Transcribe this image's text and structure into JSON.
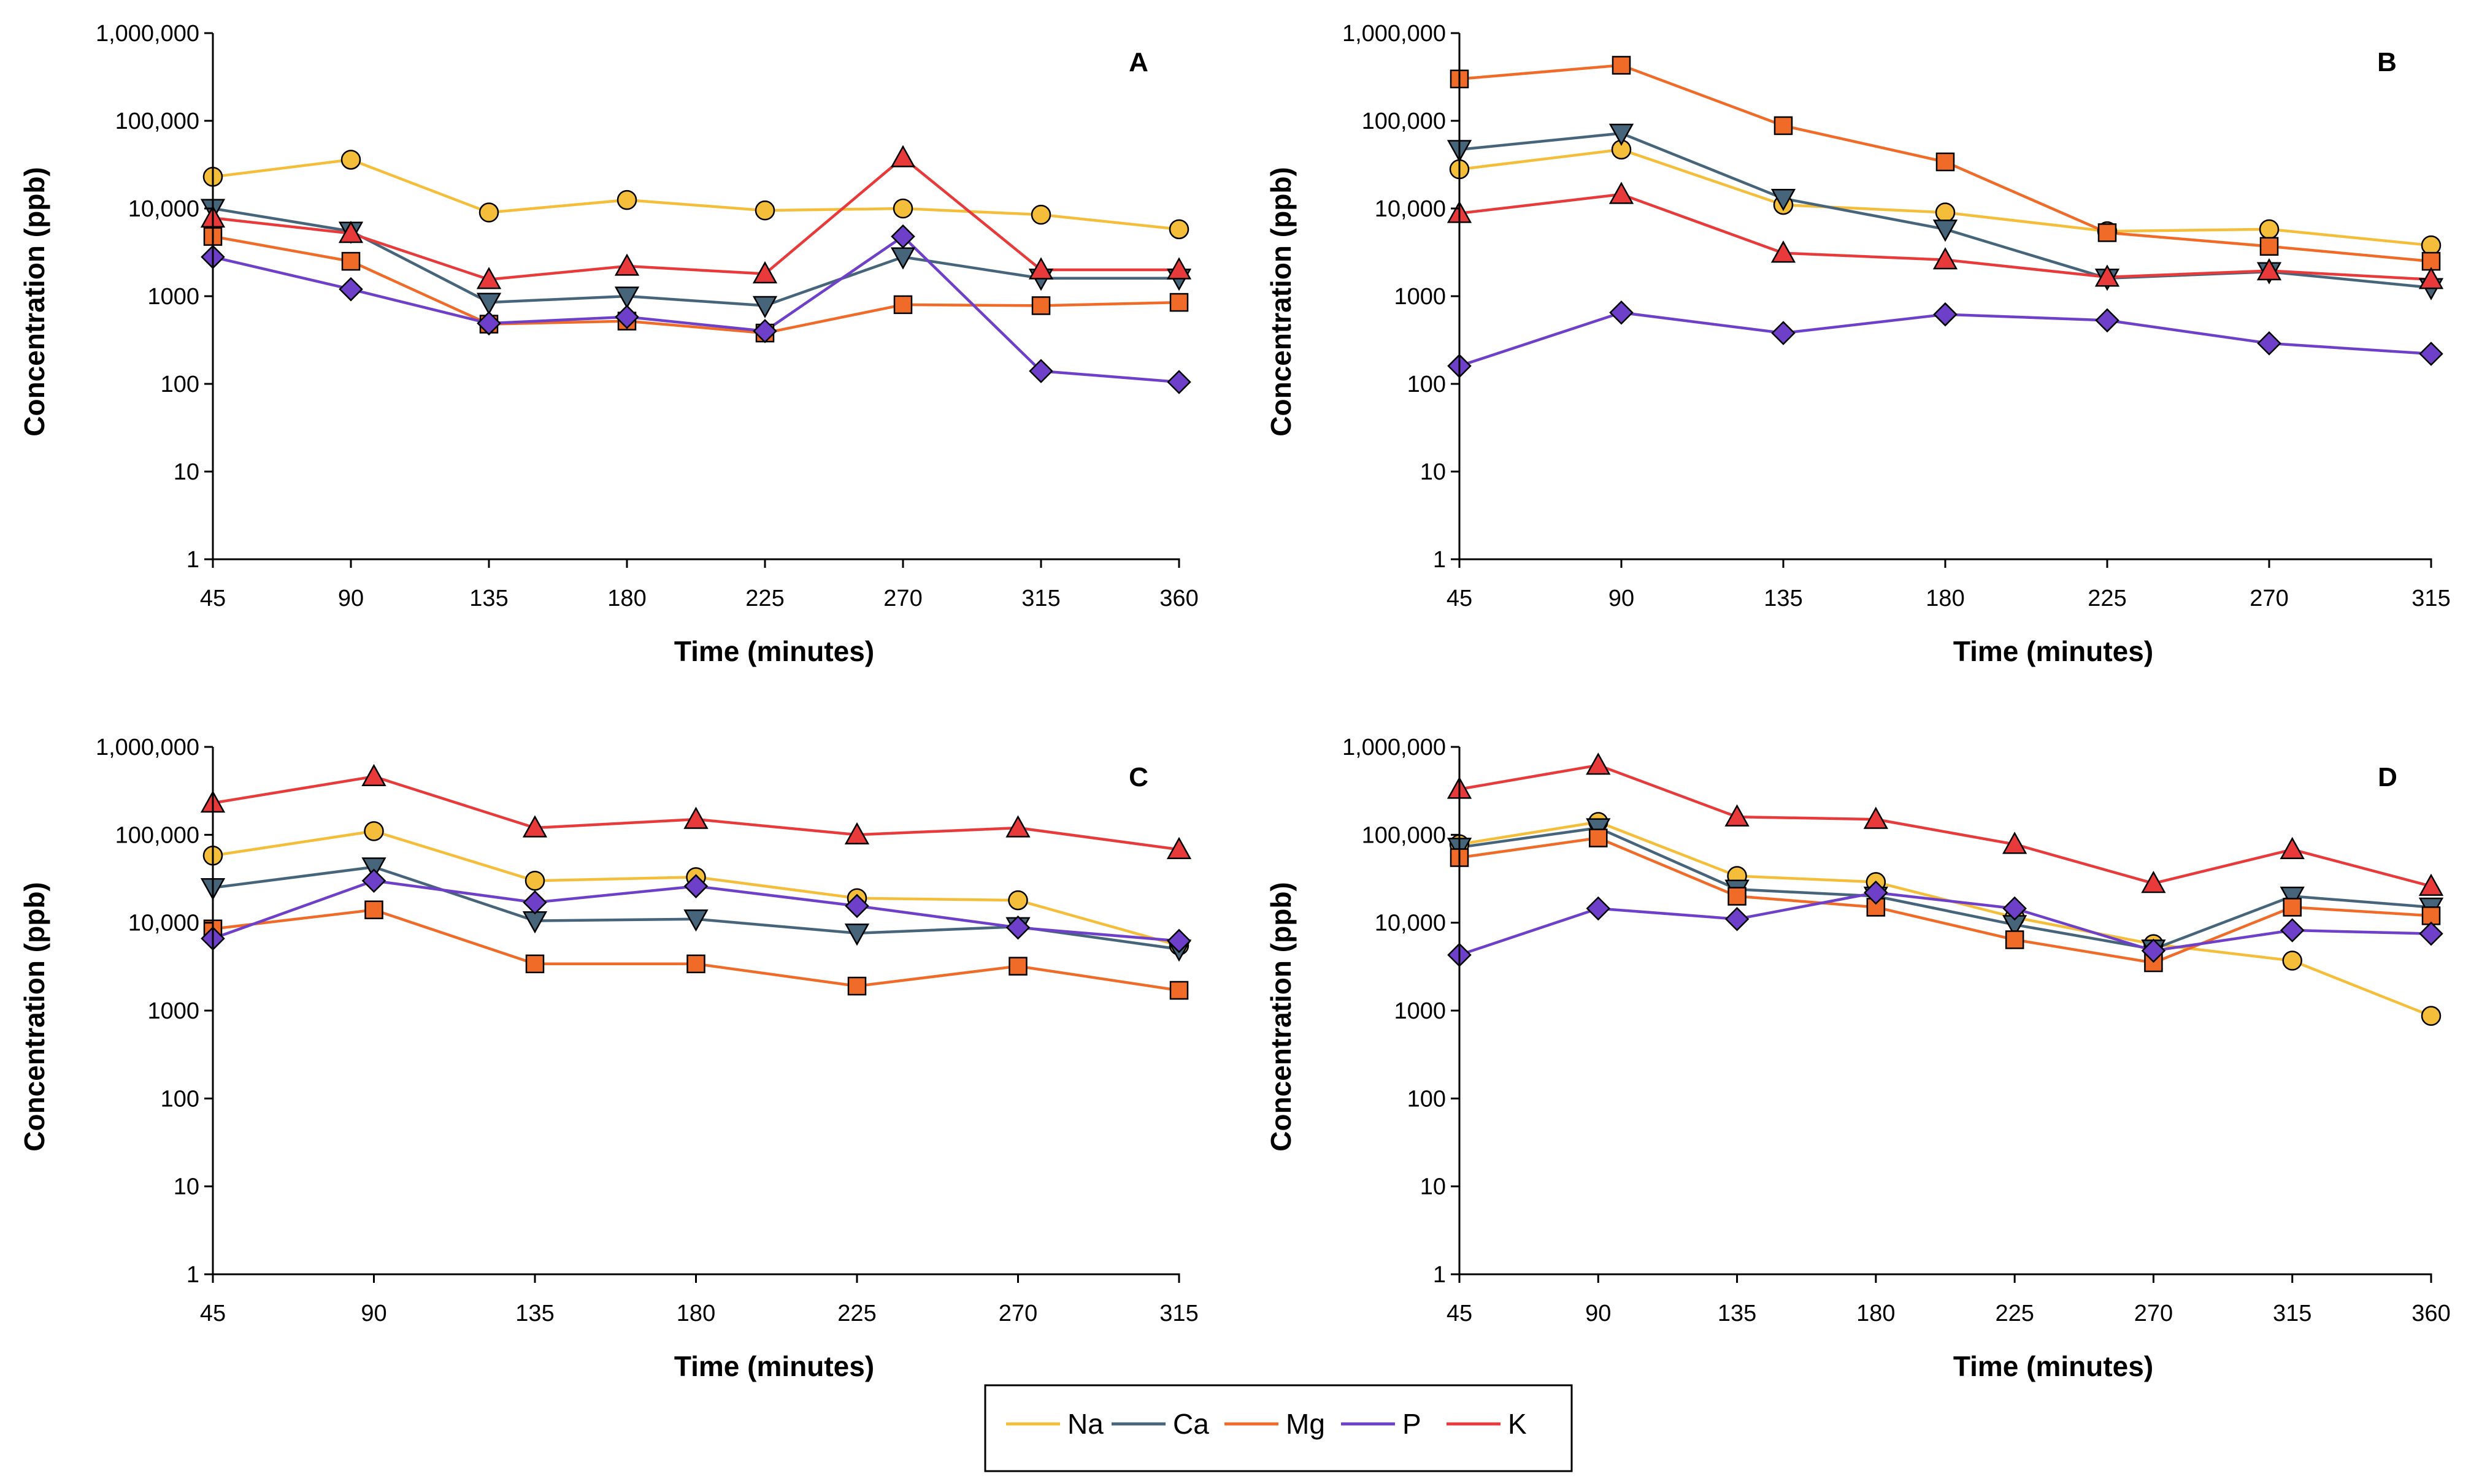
{
  "chart_data": [
    {
      "type": "line",
      "panel": "A",
      "title": "A",
      "xlabel": "Time (minutes)",
      "ylabel": "Concentration (ppb)",
      "yscale": "log",
      "ylim": [
        1,
        1000000
      ],
      "y_ticks": [
        1,
        10,
        100,
        1000,
        10000,
        100000,
        1000000
      ],
      "y_tick_labels": [
        "1",
        "10",
        "100",
        "1000",
        "10,000",
        "100,000",
        "1,000,000"
      ],
      "x": [
        45,
        90,
        135,
        180,
        225,
        270,
        315,
        360
      ],
      "x_tick_labels": [
        "45",
        "90",
        "135",
        "180",
        "225",
        "270",
        "315",
        "360"
      ],
      "series": [
        {
          "name": "Na",
          "values": [
            23000,
            36000,
            9000,
            12500,
            9500,
            10000,
            8500,
            5800
          ]
        },
        {
          "name": "Ca",
          "values": [
            10000,
            5500,
            850,
            1000,
            780,
            2800,
            1600,
            1600
          ]
        },
        {
          "name": "Mg",
          "values": [
            4800,
            2500,
            480,
            520,
            380,
            800,
            780,
            850
          ]
        },
        {
          "name": "P",
          "values": [
            2800,
            1200,
            490,
            580,
            400,
            4800,
            140,
            105
          ]
        },
        {
          "name": "K",
          "values": [
            7800,
            5200,
            1550,
            2200,
            1800,
            38000,
            2000,
            2000
          ]
        }
      ]
    },
    {
      "type": "line",
      "panel": "B",
      "title": "B",
      "xlabel": "Time (minutes)",
      "ylabel": "Concentration (ppb)",
      "yscale": "log",
      "ylim": [
        1,
        1000000
      ],
      "y_ticks": [
        1,
        10,
        100,
        1000,
        10000,
        100000,
        1000000
      ],
      "y_tick_labels": [
        "1",
        "10",
        "100",
        "1000",
        "10,000",
        "100,000",
        "1,000,000"
      ],
      "x": [
        45,
        90,
        135,
        180,
        225,
        270,
        315
      ],
      "x_tick_labels": [
        "45",
        "90",
        "135",
        "180",
        "225",
        "270",
        "315"
      ],
      "series": [
        {
          "name": "Na",
          "values": [
            28000,
            47000,
            11000,
            9000,
            5500,
            5800,
            3800
          ]
        },
        {
          "name": "Ca",
          "values": [
            47000,
            72000,
            13000,
            5800,
            1600,
            1900,
            1250
          ]
        },
        {
          "name": "Mg",
          "values": [
            300000,
            430000,
            88000,
            34000,
            5300,
            3700,
            2500
          ]
        },
        {
          "name": "P",
          "values": [
            160,
            650,
            380,
            620,
            530,
            290,
            220
          ]
        },
        {
          "name": "K",
          "values": [
            8800,
            14500,
            3100,
            2600,
            1650,
            1950,
            1550
          ]
        }
      ]
    },
    {
      "type": "line",
      "panel": "C",
      "title": "C",
      "xlabel": "Time (minutes)",
      "ylabel": "Concentration (ppb)",
      "yscale": "log",
      "ylim": [
        1,
        1000000
      ],
      "y_ticks": [
        1,
        10,
        100,
        1000,
        10000,
        100000,
        1000000
      ],
      "y_tick_labels": [
        "1",
        "10",
        "100",
        "1000",
        "10,000",
        "100,000",
        "1,000,000"
      ],
      "x": [
        45,
        90,
        135,
        180,
        225,
        270,
        315
      ],
      "x_tick_labels": [
        "45",
        "90",
        "135",
        "180",
        "225",
        "270",
        "315"
      ],
      "series": [
        {
          "name": "Na",
          "values": [
            58000,
            110000,
            30000,
            33000,
            19000,
            18000,
            5500
          ]
        },
        {
          "name": "Ca",
          "values": [
            25000,
            43000,
            10500,
            11000,
            7600,
            9000,
            5000
          ]
        },
        {
          "name": "Mg",
          "values": [
            8500,
            14000,
            3400,
            3400,
            1900,
            3200,
            1700
          ]
        },
        {
          "name": "P",
          "values": [
            6600,
            30000,
            17000,
            26000,
            15500,
            8800,
            6200
          ]
        },
        {
          "name": "K",
          "values": [
            230000,
            460000,
            120000,
            150000,
            100000,
            120000,
            68000
          ]
        }
      ]
    },
    {
      "type": "line",
      "panel": "D",
      "title": "D",
      "xlabel": "Time (minutes)",
      "ylabel": "Concentration (ppb)",
      "yscale": "log",
      "ylim": [
        1,
        1000000
      ],
      "y_ticks": [
        1,
        10,
        100,
        1000,
        10000,
        100000,
        1000000
      ],
      "y_tick_labels": [
        "1",
        "10",
        "100",
        "1000",
        "10,000",
        "100,000",
        "1,000,000"
      ],
      "x": [
        45,
        90,
        135,
        180,
        225,
        270,
        315,
        360
      ],
      "x_tick_labels": [
        "45",
        "90",
        "135",
        "180",
        "225",
        "270",
        "315",
        "360"
      ],
      "series": [
        {
          "name": "Na",
          "values": [
            78000,
            140000,
            34000,
            29000,
            11500,
            5700,
            3700,
            870
          ]
        },
        {
          "name": "Ca",
          "values": [
            72000,
            120000,
            24000,
            20000,
            9500,
            5000,
            20000,
            15000
          ]
        },
        {
          "name": "Mg",
          "values": [
            55000,
            92000,
            20000,
            15000,
            6400,
            3500,
            15000,
            12000
          ]
        },
        {
          "name": "P",
          "values": [
            4300,
            14500,
            11000,
            22000,
            14500,
            4800,
            8200,
            7500
          ]
        },
        {
          "name": "K",
          "values": [
            330000,
            620000,
            160000,
            150000,
            78000,
            28000,
            68000,
            26000
          ]
        }
      ]
    }
  ],
  "legend": [
    {
      "name": "Na",
      "color": "#F5BE3A",
      "marker": "circle"
    },
    {
      "name": "Ca",
      "color": "#46657A",
      "marker": "triangle-down"
    },
    {
      "name": "Mg",
      "color": "#F06A28",
      "marker": "square"
    },
    {
      "name": "P",
      "color": "#6E40C9",
      "marker": "diamond"
    },
    {
      "name": "K",
      "color": "#E83A3A",
      "marker": "triangle-up"
    }
  ]
}
